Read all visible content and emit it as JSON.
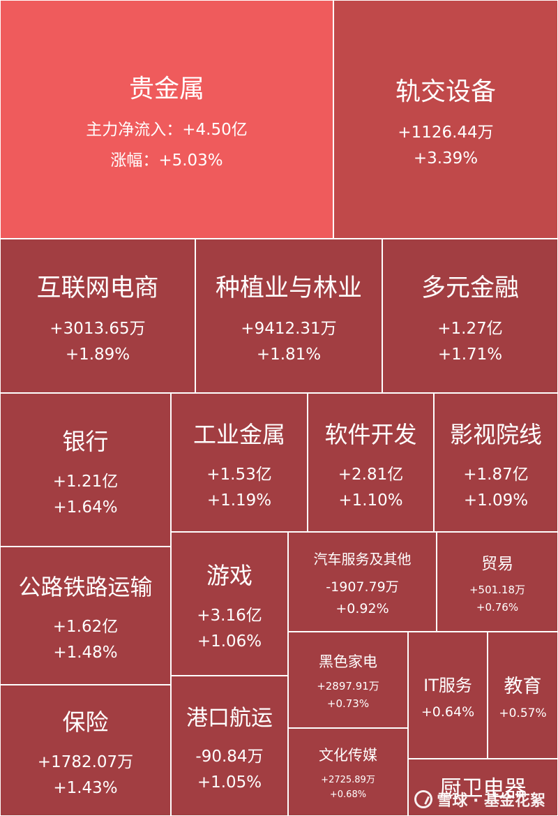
{
  "chart_data": {
    "type": "treemap",
    "colors": {
      "top": "#ef5b5c",
      "mid": "#c0494a",
      "default": "#a23e42"
    },
    "items": [
      {
        "name": "贵金属",
        "flow": "+4.50亿",
        "flow_label": "主力净流入：",
        "change": "+5.03%",
        "change_label": "涨幅：",
        "tier": "top"
      },
      {
        "name": "轨交设备",
        "flow": "+1126.44万",
        "change": "+3.39%",
        "tier": "mid"
      },
      {
        "name": "互联网电商",
        "flow": "+3013.65万",
        "change": "+1.89%"
      },
      {
        "name": "种植业与林业",
        "flow": "+9412.31万",
        "change": "+1.81%"
      },
      {
        "name": "多元金融",
        "flow": "+1.27亿",
        "change": "+1.71%"
      },
      {
        "name": "银行",
        "flow": "+1.21亿",
        "change": "+1.64%"
      },
      {
        "name": "工业金属",
        "flow": "+1.53亿",
        "change": "+1.19%"
      },
      {
        "name": "软件开发",
        "flow": "+2.81亿",
        "change": "+1.10%"
      },
      {
        "name": "影视院线",
        "flow": "+1.87亿",
        "change": "+1.09%"
      },
      {
        "name": "公路铁路运输",
        "flow": "+1.62亿",
        "change": "+1.48%"
      },
      {
        "name": "游戏",
        "flow": "+3.16亿",
        "change": "+1.06%"
      },
      {
        "name": "汽车服务及其他",
        "flow": "-1907.79万",
        "change": "+0.92%"
      },
      {
        "name": "贸易",
        "flow": "+501.18万",
        "change": "+0.76%"
      },
      {
        "name": "保险",
        "flow": "+1782.07万",
        "change": "+1.43%"
      },
      {
        "name": "港口航运",
        "flow": "-90.84万",
        "change": "+1.05%"
      },
      {
        "name": "黑色家电",
        "flow": "+2897.91万",
        "change": "+0.73%"
      },
      {
        "name": "IT服务",
        "flow": "",
        "change": "+0.64%"
      },
      {
        "name": "教育",
        "flow": "",
        "change": "+0.57%"
      },
      {
        "name": "文化传媒",
        "flow": "+2725.89万",
        "change": "+0.68%"
      },
      {
        "name": "厨卫电器",
        "flow": "",
        "change": ""
      }
    ]
  },
  "watermark": {
    "text": "雪球 · 基金花絮",
    "icon": "snowball-logo-icon"
  }
}
